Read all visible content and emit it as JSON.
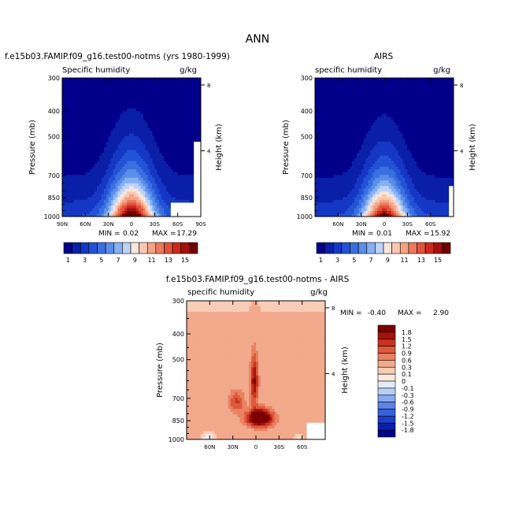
{
  "page_title": "ANN",
  "chart_data": [
    {
      "type": "heatmap",
      "title": "f.e15b03.FAMIP.f09_g16.test00-notms (yrs 1980-1999)",
      "subtitle_left": "Specific humidity",
      "subtitle_right": "g/kg",
      "ylabel": "Pressure (mb)",
      "ylabel_right": "Height (km)",
      "y_ticks": [
        "300",
        "400",
        "500",
        "700",
        "850",
        "1000"
      ],
      "y_ticks_right": [
        "8",
        "4"
      ],
      "x_ticks": [
        "90N",
        "60N",
        "30N",
        "0",
        "30S",
        "60S",
        "90S"
      ],
      "min_label": "MIN =",
      "min_value": "0.02",
      "max_label": "MAX =",
      "max_value": "17.29",
      "colorbar_labels": [
        "1",
        "3",
        "5",
        "7",
        "9",
        "11",
        "13",
        "15"
      ],
      "levels": [
        1,
        2,
        3,
        4,
        5,
        6,
        7,
        8,
        9,
        10,
        11,
        12,
        13,
        14,
        15
      ],
      "field": "model"
    },
    {
      "type": "heatmap",
      "title": "AIRS",
      "subtitle_left": "specific humidity",
      "subtitle_right": "g/kg",
      "ylabel": "Pressure (mb)",
      "ylabel_right": "Height (km)",
      "y_ticks": [
        "300",
        "400",
        "500",
        "700",
        "850",
        "1000"
      ],
      "y_ticks_right": [
        "8",
        "4"
      ],
      "x_ticks": [
        "60N",
        "30N",
        "0",
        "30S",
        "60S"
      ],
      "min_label": "MIN =",
      "min_value": "0.01",
      "max_label": "MAX =",
      "max_value": "15.92",
      "colorbar_labels": [
        "1",
        "3",
        "5",
        "7",
        "9",
        "11",
        "13",
        "15"
      ],
      "levels": [
        1,
        2,
        3,
        4,
        5,
        6,
        7,
        8,
        9,
        10,
        11,
        12,
        13,
        14,
        15
      ],
      "field": "airs"
    },
    {
      "type": "heatmap",
      "title": "f.e15b03.FAMIP.f09_g16.test00-notms - AIRS",
      "subtitle_left": "specific humidity",
      "subtitle_right": "g/kg",
      "ylabel": "Pressure (mb)",
      "ylabel_right": "Height (km)",
      "y_ticks": [
        "300",
        "400",
        "500",
        "700",
        "850",
        "1000"
      ],
      "y_ticks_right": [
        "8",
        "4"
      ],
      "x_ticks": [
        "60N",
        "30N",
        "0",
        "30S",
        "60S"
      ],
      "min_label": "MIN =",
      "min_value": "-0.40",
      "max_label": "MAX =",
      "max_value": "2.90",
      "colorbar_labels": [
        "1.8",
        "1.5",
        "1.2",
        "0.9",
        "0.6",
        "0.3",
        "0.1",
        "0",
        "-0.1",
        "-0.3",
        "-0.6",
        "-0.9",
        "-1.2",
        "-1.5",
        "-1.8"
      ],
      "field": "diff"
    }
  ],
  "colors": {
    "abs_scale": [
      "#00008b",
      "#0a1fa8",
      "#1537c4",
      "#2253d6",
      "#3a6fe0",
      "#5a8eea",
      "#86b0f2",
      "#bdd3f8",
      "#f7e6dc",
      "#f8c7b0",
      "#f5a384",
      "#ee7a5c",
      "#e2523a",
      "#cc2a1c",
      "#a5100b",
      "#6e0000"
    ],
    "diff_scale": [
      "#00008b",
      "#0a1fa8",
      "#1d3fc8",
      "#3560dc",
      "#5a84e8",
      "#86a9f0",
      "#b8cef6",
      "#e4ecfb",
      "#fdeadf",
      "#f8cdb6",
      "#f2a98c",
      "#ea8262",
      "#dc5a3c",
      "#c83320",
      "#a61308",
      "#7a0000"
    ]
  }
}
